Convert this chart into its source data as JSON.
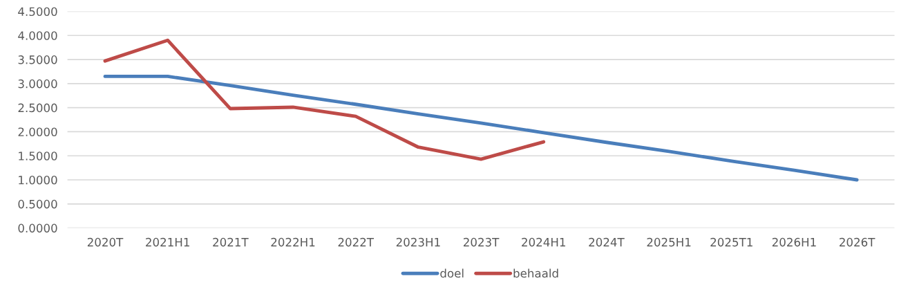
{
  "chart_data": {
    "type": "line",
    "categories": [
      "2020T",
      "2021H1",
      "2021T",
      "2022H1",
      "2022T",
      "2023H1",
      "2023T",
      "2024H1",
      "2024T",
      "2025H1",
      "2025T1",
      "2026H1",
      "2026T"
    ],
    "series": [
      {
        "name": "doel",
        "color": "#4a7ebb",
        "values": [
          3.15,
          3.15,
          2.96,
          2.76,
          2.57,
          2.37,
          2.18,
          1.98,
          1.78,
          1.59,
          1.39,
          1.2,
          1.0
        ]
      },
      {
        "name": "behaald",
        "color": "#be4b48",
        "values": [
          3.47,
          3.9,
          2.48,
          2.51,
          2.32,
          1.68,
          1.43,
          1.79,
          null,
          null,
          null,
          null,
          null
        ]
      }
    ],
    "ylim": [
      0,
      4.5
    ],
    "yticks": [
      {
        "value": 0,
        "label": "0.0000"
      },
      {
        "value": 0.5,
        "label": "0.5000"
      },
      {
        "value": 1,
        "label": "1.0000"
      },
      {
        "value": 1.5,
        "label": "1.5000"
      },
      {
        "value": 2,
        "label": "2.0000"
      },
      {
        "value": 2.5,
        "label": "2.5000"
      },
      {
        "value": 3,
        "label": "3.0000"
      },
      {
        "value": 3.5,
        "label": "3.5000"
      },
      {
        "value": 4,
        "label": "4.0000"
      },
      {
        "value": 4.5,
        "label": "4.5000"
      }
    ],
    "grid": "y",
    "legend": "bottom",
    "marker": "none",
    "line_style": "solid"
  }
}
